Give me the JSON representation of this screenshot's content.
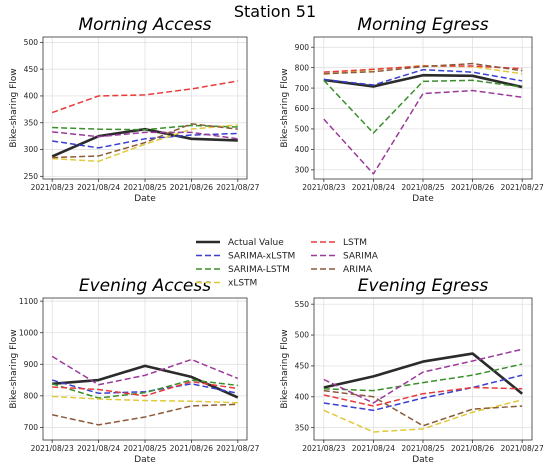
{
  "figure_title": "Station 51",
  "legend": {
    "entries": [
      {
        "label": "Actual Value",
        "color": "#2b2b2b",
        "dash": "solid",
        "width": 2.6
      },
      {
        "label": "SARIMA-xLSTM",
        "color": "#3a3fd0",
        "dash": "dashed",
        "width": 1.5
      },
      {
        "label": "SARIMA-LSTM",
        "color": "#3a8f2b",
        "dash": "dashed",
        "width": 1.5
      },
      {
        "label": "xLSTM",
        "color": "#e0c93a",
        "dash": "dashed",
        "width": 1.5
      },
      {
        "label": "LSTM",
        "color": "#e83a3a",
        "dash": "dashed",
        "width": 1.5
      },
      {
        "label": "SARIMA",
        "color": "#9b3a9b",
        "dash": "dashed",
        "width": 1.5
      },
      {
        "label": "ARIMA",
        "color": "#8a5a3a",
        "dash": "dashed",
        "width": 1.5
      }
    ]
  },
  "chart_data": [
    {
      "type": "line",
      "title": "Morning Access",
      "xlabel": "Date",
      "ylabel": "Bike-sharing Flow",
      "categories": [
        "2021/08/23",
        "2021/08/24",
        "2021/08/25",
        "2021/08/26",
        "2021/08/27"
      ],
      "ylim": [
        245,
        510
      ],
      "yticks": [
        250,
        300,
        350,
        400,
        450,
        500
      ],
      "grid": true,
      "series": [
        {
          "name": "Actual Value",
          "values": [
            287,
            325,
            338,
            320,
            317
          ]
        },
        {
          "name": "SARIMA-xLSTM",
          "values": [
            316,
            303,
            320,
            327,
            330
          ]
        },
        {
          "name": "SARIMA-LSTM",
          "values": [
            341,
            338,
            337,
            345,
            342
          ]
        },
        {
          "name": "xLSTM",
          "values": [
            283,
            278,
            310,
            338,
            346
          ]
        },
        {
          "name": "LSTM",
          "values": [
            369,
            400,
            402,
            413,
            428
          ]
        },
        {
          "name": "SARIMA",
          "values": [
            333,
            324,
            332,
            332,
            320
          ]
        },
        {
          "name": "ARIMA",
          "values": [
            285,
            288,
            313,
            348,
            338
          ]
        }
      ]
    },
    {
      "type": "line",
      "title": "Morning Egress",
      "xlabel": "Date",
      "ylabel": "Bike-sharing Flow",
      "categories": [
        "2021/08/23",
        "2021/08/24",
        "2021/08/25",
        "2021/08/26",
        "2021/08/27"
      ],
      "ylim": [
        255,
        950
      ],
      "yticks": [
        300,
        400,
        500,
        600,
        700,
        800,
        900
      ],
      "grid": true,
      "series": [
        {
          "name": "Actual Value",
          "values": [
            740,
            708,
            763,
            760,
            705
          ]
        },
        {
          "name": "SARIMA-xLSTM",
          "values": [
            742,
            715,
            790,
            778,
            735
          ]
        },
        {
          "name": "SARIMA-LSTM",
          "values": [
            738,
            480,
            733,
            738,
            705
          ]
        },
        {
          "name": "xLSTM",
          "values": [
            768,
            790,
            810,
            805,
            770
          ]
        },
        {
          "name": "LSTM",
          "values": [
            778,
            792,
            808,
            808,
            795
          ]
        },
        {
          "name": "SARIMA",
          "values": [
            548,
            280,
            673,
            688,
            655
          ]
        },
        {
          "name": "ARIMA",
          "values": [
            770,
            780,
            805,
            820,
            785
          ]
        }
      ]
    },
    {
      "type": "line",
      "title": "Evening Access",
      "xlabel": "Date",
      "ylabel": "Bike-sharing Flow",
      "categories": [
        "2021/08/23",
        "2021/08/24",
        "2021/08/25",
        "2021/08/26",
        "2021/08/27"
      ],
      "ylim": [
        660,
        1110
      ],
      "yticks": [
        700,
        800,
        900,
        1000,
        1100
      ],
      "grid": true,
      "series": [
        {
          "name": "Actual Value",
          "values": [
            838,
            850,
            895,
            860,
            795
          ]
        },
        {
          "name": "SARIMA-xLSTM",
          "values": [
            850,
            808,
            813,
            838,
            808
          ]
        },
        {
          "name": "SARIMA-LSTM",
          "values": [
            838,
            793,
            810,
            850,
            833
          ]
        },
        {
          "name": "xLSTM",
          "values": [
            798,
            790,
            785,
            783,
            778
          ]
        },
        {
          "name": "LSTM",
          "values": [
            828,
            820,
            800,
            845,
            823
          ]
        },
        {
          "name": "SARIMA",
          "values": [
            925,
            835,
            865,
            915,
            855
          ]
        },
        {
          "name": "ARIMA",
          "values": [
            740,
            708,
            733,
            768,
            773
          ]
        }
      ]
    },
    {
      "type": "line",
      "title": "Evening Egress",
      "xlabel": "Date",
      "ylabel": "Bike-sharing Flow",
      "categories": [
        "2021/08/23",
        "2021/08/24",
        "2021/08/25",
        "2021/08/26",
        "2021/08/27"
      ],
      "ylim": [
        330,
        560
      ],
      "yticks": [
        350,
        400,
        450,
        500,
        550
      ],
      "grid": true,
      "series": [
        {
          "name": "Actual Value",
          "values": [
            415,
            433,
            457,
            470,
            405
          ]
        },
        {
          "name": "SARIMA-xLSTM",
          "values": [
            390,
            378,
            398,
            415,
            435
          ]
        },
        {
          "name": "SARIMA-LSTM",
          "values": [
            413,
            410,
            423,
            435,
            453
          ]
        },
        {
          "name": "xLSTM",
          "values": [
            378,
            343,
            348,
            375,
            395
          ]
        },
        {
          "name": "LSTM",
          "values": [
            403,
            385,
            405,
            415,
            413
          ]
        },
        {
          "name": "SARIMA",
          "values": [
            428,
            390,
            440,
            458,
            477
          ]
        },
        {
          "name": "ARIMA",
          "values": [
            410,
            400,
            353,
            380,
            385
          ]
        }
      ]
    }
  ]
}
